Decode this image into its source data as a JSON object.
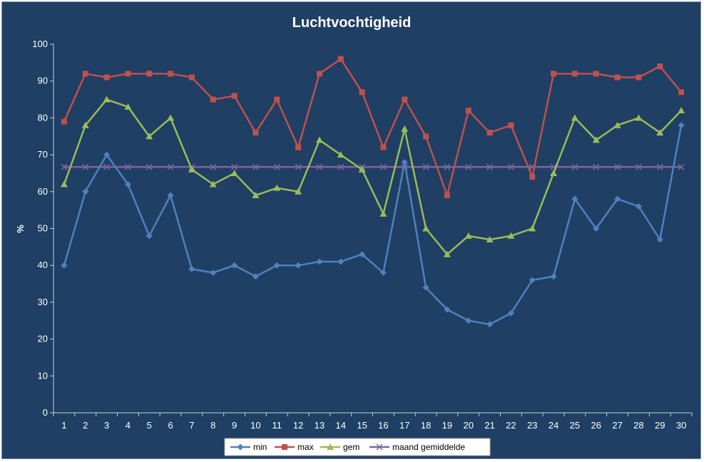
{
  "chart_data": {
    "type": "line",
    "title": "Luchtvochtigheid",
    "xlabel": "",
    "ylabel": "%",
    "ylim": [
      0,
      100
    ],
    "yticks": [
      0,
      10,
      20,
      30,
      40,
      50,
      60,
      70,
      80,
      90,
      100
    ],
    "x": [
      "1",
      "2",
      "3",
      "4",
      "5",
      "6",
      "7",
      "8",
      "9",
      "10",
      "11",
      "12",
      "13",
      "14",
      "15",
      "16",
      "17",
      "18",
      "19",
      "20",
      "21",
      "22",
      "23",
      "24",
      "25",
      "26",
      "27",
      "28",
      "29",
      "30"
    ],
    "grid": false,
    "legend_position": "bottom",
    "series": [
      {
        "name": "min",
        "color": "#4f81bd",
        "marker": "diamond",
        "values": [
          40,
          60,
          70,
          62,
          48,
          59,
          39,
          38,
          40,
          37,
          40,
          40,
          41,
          41,
          43,
          38,
          68,
          34,
          28,
          25,
          24,
          27,
          36,
          37,
          58,
          50,
          58,
          56,
          47,
          78
        ]
      },
      {
        "name": "max",
        "color": "#c0504d",
        "marker": "square",
        "values": [
          79,
          92,
          91,
          92,
          92,
          92,
          91,
          85,
          86,
          76,
          85,
          72,
          92,
          96,
          87,
          72,
          85,
          75,
          59,
          82,
          76,
          78,
          64,
          92,
          92,
          92,
          91,
          91,
          94,
          87
        ]
      },
      {
        "name": "gem",
        "color": "#9bbb59",
        "marker": "triangle",
        "values": [
          62,
          78,
          85,
          83,
          75,
          80,
          66,
          62,
          65,
          59,
          61,
          60,
          74,
          70,
          66,
          54,
          77,
          50,
          43,
          48,
          47,
          48,
          50,
          65,
          80,
          74,
          78,
          80,
          76,
          82
        ]
      },
      {
        "name": "maand gemiddelde",
        "color": "#8064a2",
        "marker": "x",
        "values": [
          66.7,
          66.7,
          66.7,
          66.7,
          66.7,
          66.7,
          66.7,
          66.7,
          66.7,
          66.7,
          66.7,
          66.7,
          66.7,
          66.7,
          66.7,
          66.7,
          66.7,
          66.7,
          66.7,
          66.7,
          66.7,
          66.7,
          66.7,
          66.7,
          66.7,
          66.7,
          66.7,
          66.7,
          66.7,
          66.7
        ]
      }
    ]
  }
}
